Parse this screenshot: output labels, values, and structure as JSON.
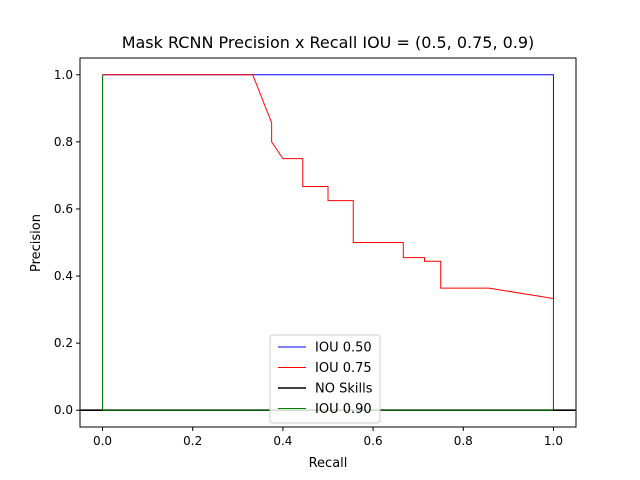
{
  "chart_data": {
    "type": "line",
    "title": "Mask RCNN Precision x Recall  IOU = (0.5, 0.75, 0.9)",
    "xlabel": "Recall",
    "ylabel": "Precision",
    "xlim": [
      -0.05,
      1.05
    ],
    "ylim": [
      -0.05,
      1.05
    ],
    "xticks": [
      0.0,
      0.2,
      0.4,
      0.6,
      0.8,
      1.0
    ],
    "yticks": [
      0.0,
      0.2,
      0.4,
      0.6,
      0.8,
      1.0
    ],
    "xtick_labels": [
      "0.0",
      "0.2",
      "0.4",
      "0.6",
      "0.8",
      "1.0"
    ],
    "ytick_labels": [
      "0.0",
      "0.2",
      "0.4",
      "0.6",
      "0.8",
      "1.0"
    ],
    "grid": false,
    "legend_position": "lower-center",
    "series": [
      {
        "name": "IOU 0.50",
        "color": "#0000ff",
        "x": [
          0.0,
          1.0,
          1.0,
          0.0,
          0.0
        ],
        "y": [
          1.0,
          1.0,
          0.0,
          0.0,
          1.0
        ]
      },
      {
        "name": "IOU 0.75",
        "color": "#ff0000",
        "x": [
          0.0,
          0.333,
          0.375,
          0.375,
          0.4,
          0.444,
          0.444,
          0.5,
          0.5,
          0.556,
          0.556,
          0.667,
          0.667,
          0.714,
          0.714,
          0.75,
          0.75,
          0.857,
          1.0,
          1.0,
          0.0
        ],
        "y": [
          1.0,
          1.0,
          0.857,
          0.8,
          0.75,
          0.75,
          0.667,
          0.667,
          0.625,
          0.625,
          0.5,
          0.5,
          0.455,
          0.455,
          0.444,
          0.444,
          0.364,
          0.364,
          0.333,
          0.0,
          0.0
        ]
      },
      {
        "name": "NO Skills",
        "color": "#000000",
        "x": [
          -0.05,
          1.05
        ],
        "y": [
          0.0,
          0.0
        ]
      },
      {
        "name": "IOU 0.90",
        "color": "#008000",
        "x": [
          0.0,
          0.0,
          1.0
        ],
        "y": [
          1.0,
          0.0,
          0.0
        ]
      }
    ]
  }
}
